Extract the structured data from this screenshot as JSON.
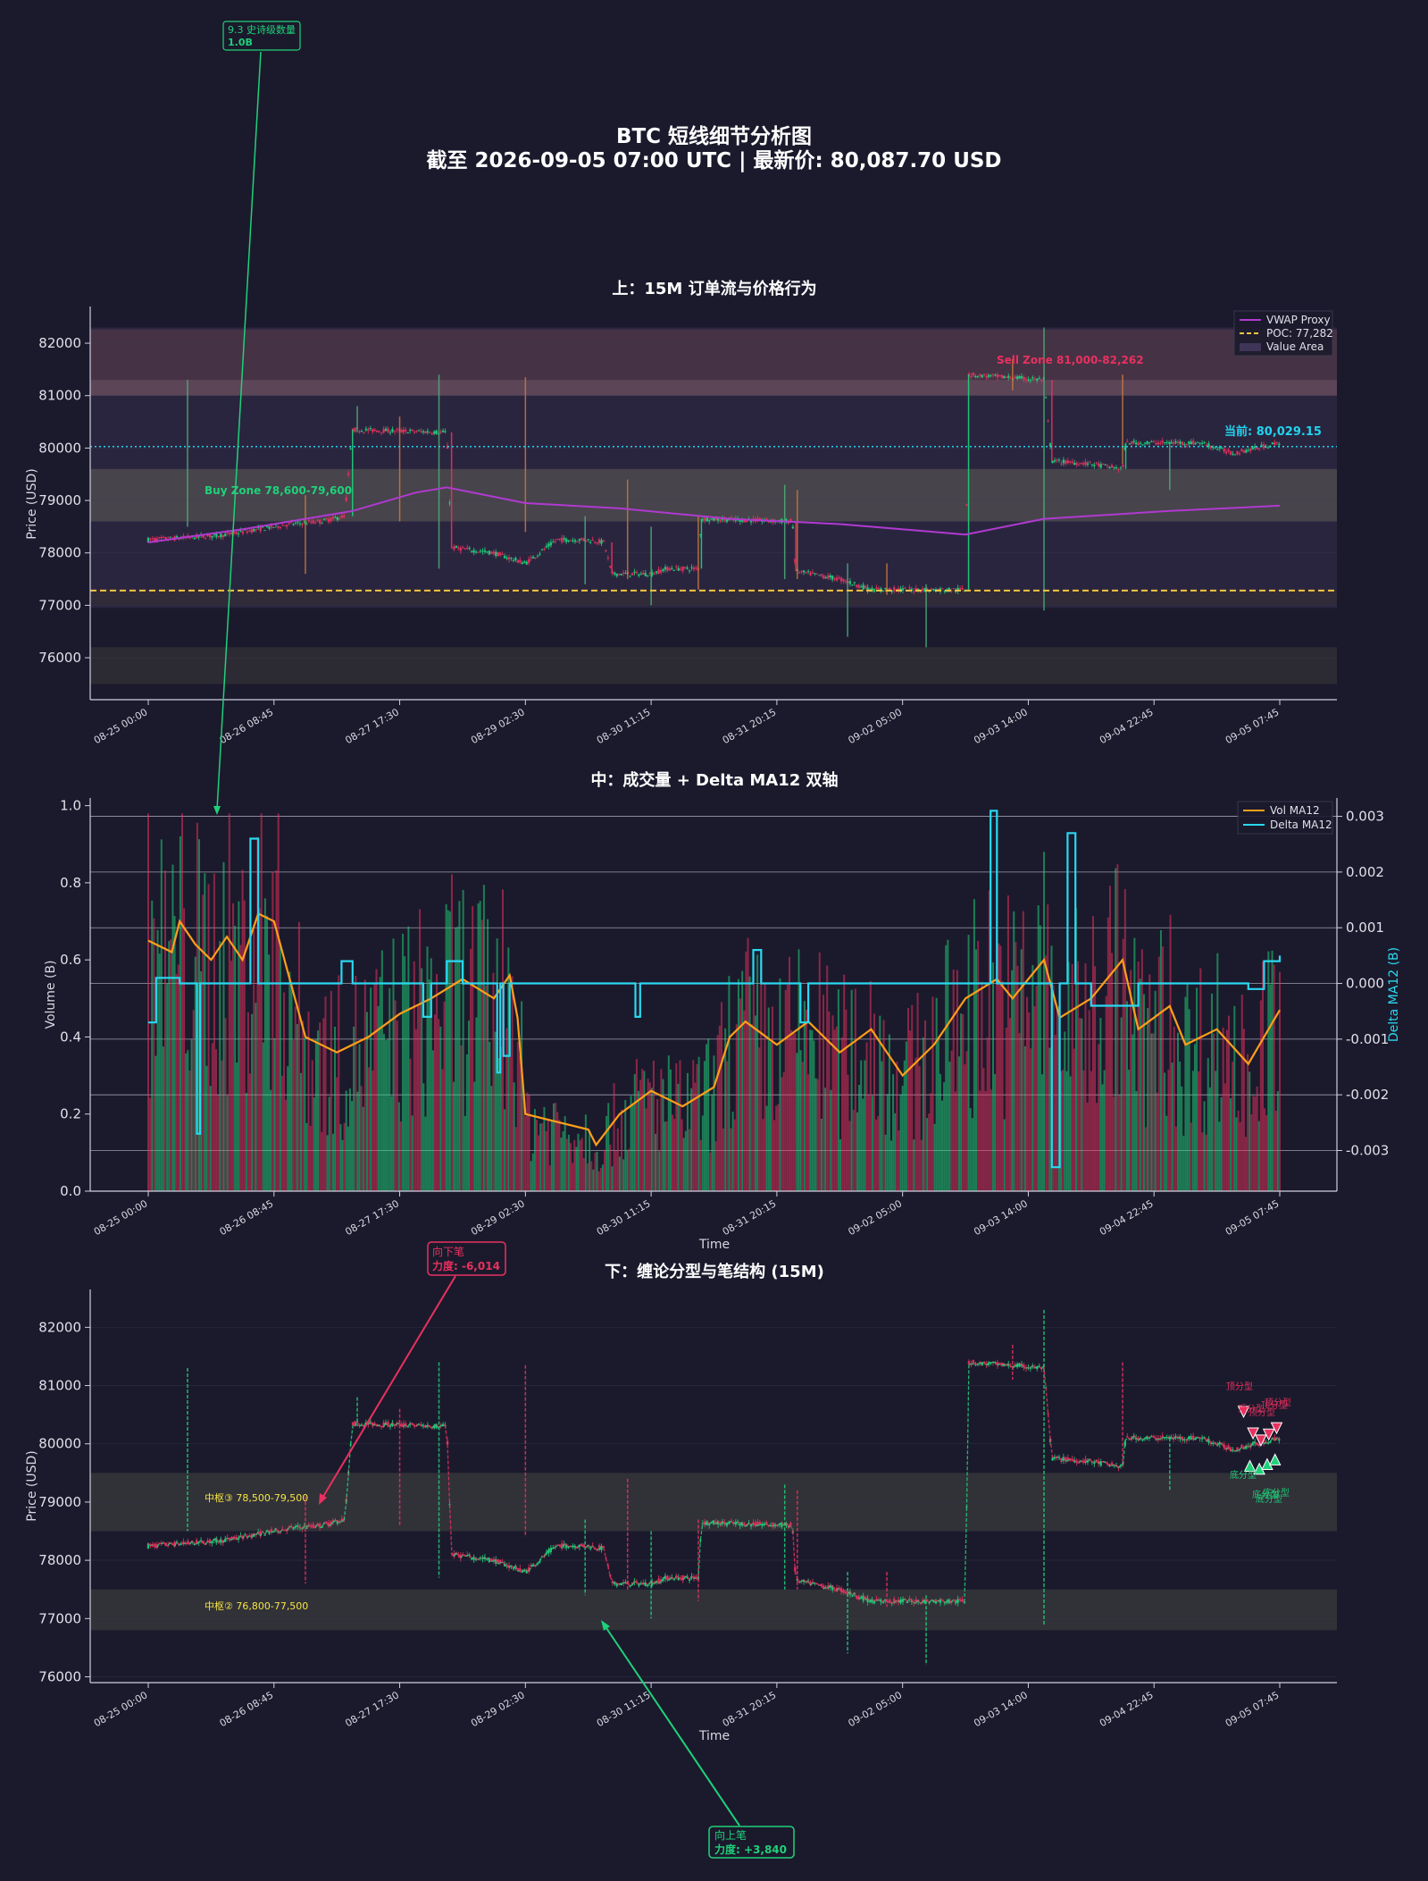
{
  "figure": {
    "title_line1": "BTC 短线细节分析图",
    "title_line2": "截至 2026-09-05 07:00 UTC | 最新价: 80,087.70 USD",
    "colors": {
      "background": "#1b1a2c",
      "up": "#1fd17a",
      "down": "#e8315f",
      "vwap": "#b03ad0",
      "poc": "#f5c542",
      "current": "#22d3ee",
      "vol_ma": "#ff9f1a",
      "delta_ma": "#29d8f0",
      "zhongshu_label": "#f5e642"
    }
  },
  "chart_data": [
    {
      "type": "candlestick",
      "title": "上：15M 订单流与价格行为",
      "ylabel": "Price (USD)",
      "ylim": [
        75200,
        82700
      ],
      "yticks": [
        76000,
        77000,
        78000,
        79000,
        80000,
        81000,
        82000
      ],
      "x_tick_labels": [
        "08-25 00:00",
        "08-26 08:45",
        "08-27 17:30",
        "08-29 02:30",
        "08-30 11:15",
        "08-31 20:15",
        "09-02 05:00",
        "09-03 14:00",
        "09-04 22:45",
        "09-05 07:45"
      ],
      "legend": {
        "placement": "top-right",
        "entries": [
          "VWAP Proxy",
          "POC: 77,282",
          "Value Area"
        ]
      },
      "levels": {
        "poc": 77282,
        "current": 80029.15,
        "current_label": "当前: 80,029.15"
      },
      "zones": [
        {
          "label": "Buy Zone 78,600-79,600",
          "low": 78600,
          "high": 79600
        },
        {
          "label": "Sell Zone 81,000-82,262",
          "low": 81000,
          "high": 82262
        },
        {
          "label": "",
          "low": 81000,
          "high": 81300
        },
        {
          "label": "",
          "low": 75500,
          "high": 76200
        },
        {
          "label": "",
          "low": 77000,
          "high": 77300
        }
      ],
      "value_area": {
        "low": 76950,
        "high": 82300
      },
      "price_path": [
        [
          0,
          78250
        ],
        [
          3,
          78300
        ],
        [
          5,
          78350
        ],
        [
          7,
          78450
        ],
        [
          9,
          78550
        ],
        [
          11,
          78600
        ],
        [
          12.5,
          78700
        ],
        [
          13,
          80350
        ],
        [
          19,
          80300
        ],
        [
          19.3,
          78100
        ],
        [
          22,
          78000
        ],
        [
          24,
          77800
        ],
        [
          26,
          78250
        ],
        [
          28,
          78250
        ],
        [
          29,
          78200
        ],
        [
          29.5,
          77600
        ],
        [
          32,
          77600
        ],
        [
          33,
          77700
        ],
        [
          35,
          77700
        ],
        [
          35.2,
          78650
        ],
        [
          41,
          78600
        ],
        [
          41.2,
          77650
        ],
        [
          44,
          77500
        ],
        [
          46,
          77300
        ],
        [
          48,
          77300
        ],
        [
          52,
          77300
        ],
        [
          52.2,
          81400
        ],
        [
          57,
          81300
        ],
        [
          57.5,
          79750
        ],
        [
          60,
          79700
        ],
        [
          62,
          79600
        ],
        [
          62.2,
          80100
        ],
        [
          67,
          80100
        ],
        [
          69,
          79900
        ],
        [
          72,
          80100
        ]
      ],
      "spikes": [
        [
          2.5,
          81300,
          78500
        ],
        [
          10,
          79100,
          77600
        ],
        [
          13.3,
          80800,
          80300
        ],
        [
          16,
          80600,
          78600
        ],
        [
          18.5,
          81400,
          77700
        ],
        [
          24,
          81350,
          78400
        ],
        [
          27.8,
          78700,
          77400
        ],
        [
          30.5,
          79400,
          77500
        ],
        [
          32,
          78500,
          77000
        ],
        [
          35,
          78700,
          77300
        ],
        [
          40.5,
          79300,
          77500
        ],
        [
          41.3,
          79200,
          77500
        ],
        [
          44.5,
          77800,
          76400
        ],
        [
          47,
          77800,
          77200
        ],
        [
          49.5,
          77400,
          76200
        ],
        [
          55,
          81700,
          81100
        ],
        [
          57,
          82300,
          76900
        ],
        [
          62,
          81400,
          79700
        ],
        [
          65,
          80100,
          79200
        ]
      ],
      "vwap": [
        [
          0,
          78200
        ],
        [
          6,
          78450
        ],
        [
          10,
          78650
        ],
        [
          13,
          78800
        ],
        [
          17,
          79150
        ],
        [
          19,
          79250
        ],
        [
          24,
          78950
        ],
        [
          30,
          78850
        ],
        [
          37,
          78650
        ],
        [
          44,
          78550
        ],
        [
          52,
          78350
        ],
        [
          57,
          78650
        ],
        [
          65,
          78800
        ],
        [
          72,
          78900
        ]
      ]
    },
    {
      "type": "bar+line",
      "title": "中：成交量 + Delta MA12 双轴",
      "xlabel": "Time",
      "ylabel": "Volume (B)",
      "y2label": "Delta MA12 (B)",
      "ylim": [
        0,
        1.02
      ],
      "yticks": [
        0.0,
        0.2,
        0.4,
        0.6,
        0.8,
        1.0
      ],
      "y2lim": [
        -0.00373,
        0.00333
      ],
      "y2ticks": [
        -0.003,
        -0.002,
        -0.001,
        0.0,
        0.001,
        0.002,
        0.003
      ],
      "x_tick_labels": [
        "08-25 00:00",
        "08-26 08:45",
        "08-27 17:30",
        "08-29 02:30",
        "08-30 11:15",
        "08-31 20:15",
        "09-02 05:00",
        "09-03 14:00",
        "09-04 22:45",
        "09-05 07:45"
      ],
      "legend": {
        "placement": "top-right",
        "entries": [
          "Vol MA12",
          "Delta MA12"
        ]
      },
      "vol_ma12": [
        [
          0,
          0.65
        ],
        [
          1.5,
          0.62
        ],
        [
          2,
          0.7
        ],
        [
          3,
          0.64
        ],
        [
          4,
          0.6
        ],
        [
          5,
          0.66
        ],
        [
          6,
          0.6
        ],
        [
          7,
          0.72
        ],
        [
          8,
          0.7
        ],
        [
          9,
          0.55
        ],
        [
          10,
          0.4
        ],
        [
          12,
          0.36
        ],
        [
          14,
          0.4
        ],
        [
          16,
          0.46
        ],
        [
          18,
          0.5
        ],
        [
          20,
          0.55
        ],
        [
          22,
          0.5
        ],
        [
          23,
          0.56
        ],
        [
          23.5,
          0.45
        ],
        [
          24,
          0.2
        ],
        [
          26,
          0.18
        ],
        [
          28,
          0.16
        ],
        [
          28.5,
          0.12
        ],
        [
          30,
          0.2
        ],
        [
          32,
          0.26
        ],
        [
          34,
          0.22
        ],
        [
          36,
          0.27
        ],
        [
          37,
          0.4
        ],
        [
          38,
          0.44
        ],
        [
          40,
          0.38
        ],
        [
          42,
          0.44
        ],
        [
          44,
          0.36
        ],
        [
          46,
          0.42
        ],
        [
          48,
          0.3
        ],
        [
          50,
          0.38
        ],
        [
          52,
          0.5
        ],
        [
          54,
          0.55
        ],
        [
          55,
          0.5
        ],
        [
          57,
          0.6
        ],
        [
          58,
          0.45
        ],
        [
          60,
          0.5
        ],
        [
          62,
          0.6
        ],
        [
          63,
          0.42
        ],
        [
          65,
          0.48
        ],
        [
          66,
          0.38
        ],
        [
          68,
          0.42
        ],
        [
          70,
          0.33
        ],
        [
          71,
          0.4
        ],
        [
          72,
          0.47
        ]
      ],
      "delta_ma12": [
        [
          0,
          -0.0007
        ],
        [
          0.5,
          0.0001
        ],
        [
          1,
          0.0001
        ],
        [
          2,
          0.0
        ],
        [
          3,
          0.0
        ],
        [
          3.1,
          -0.0027
        ],
        [
          3.3,
          0.0
        ],
        [
          5,
          0.0
        ],
        [
          6,
          0.0
        ],
        [
          6.5,
          0.0026
        ],
        [
          7,
          0.0
        ],
        [
          8,
          0.0
        ],
        [
          9,
          0.0
        ],
        [
          10,
          0.0
        ],
        [
          10.5,
          0.0
        ],
        [
          12,
          0.0
        ],
        [
          12.3,
          0.0004
        ],
        [
          13,
          0.0
        ],
        [
          17,
          0.0
        ],
        [
          17.5,
          -0.0006
        ],
        [
          18,
          0.0
        ],
        [
          19,
          0.0004
        ],
        [
          20,
          0.0
        ],
        [
          22,
          0.0
        ],
        [
          22.2,
          -0.0016
        ],
        [
          22.4,
          0.0
        ],
        [
          22.6,
          -0.0013
        ],
        [
          23,
          0.0
        ],
        [
          24,
          0.0
        ],
        [
          30,
          0.0
        ],
        [
          31,
          -0.0006
        ],
        [
          31.3,
          0.0
        ],
        [
          38,
          0.0
        ],
        [
          38.5,
          0.0006
        ],
        [
          39,
          0.0
        ],
        [
          41,
          0.0
        ],
        [
          41.5,
          -0.0007
        ],
        [
          42,
          0.0
        ],
        [
          45,
          0.0
        ],
        [
          47,
          0.0
        ],
        [
          50,
          0.0
        ],
        [
          52,
          0.0
        ],
        [
          53.5,
          0.0
        ],
        [
          53.6,
          0.0031
        ],
        [
          54,
          0.0
        ],
        [
          55,
          0.0
        ],
        [
          57,
          0.0
        ],
        [
          57.5,
          -0.0033
        ],
        [
          58,
          0.0
        ],
        [
          58.5,
          0.0027
        ],
        [
          59,
          0.0
        ],
        [
          60,
          -0.0004
        ],
        [
          63,
          0.0
        ],
        [
          64,
          0.0
        ],
        [
          66,
          0.0
        ],
        [
          68,
          0.0
        ],
        [
          70,
          -0.0001
        ],
        [
          71,
          0.0004
        ],
        [
          72,
          0.0005
        ]
      ],
      "volume_bars": "per 15M candle, 0.1–0.95 B; shown as red/green bars"
    },
    {
      "type": "line",
      "title": "下：缠论分型与笔结构 (15M)",
      "xlabel": "Time",
      "ylabel": "Price (USD)",
      "ylim": [
        75900,
        82650
      ],
      "yticks": [
        76000,
        77000,
        78000,
        79000,
        80000,
        81000,
        82000
      ],
      "x_tick_labels": [
        "08-25 00:00",
        "08-26 08:45",
        "08-27 17:30",
        "08-29 02:30",
        "08-30 11:15",
        "08-31 20:15",
        "09-02 05:00",
        "09-03 14:00",
        "09-04 22:45",
        "09-05 07:45"
      ],
      "zhongshu": [
        {
          "label": "中枢③ 78,500-79,500",
          "low": 78500,
          "high": 79500
        },
        {
          "label": "中枢② 76,800-77,500",
          "low": 76800,
          "high": 77500
        }
      ],
      "fractal_labels": {
        "top": "顶分型",
        "bottom": "底分型"
      },
      "top_fractals": [
        [
          69.7,
          80550
        ],
        [
          70.3,
          80180
        ],
        [
          70.8,
          80060
        ],
        [
          71.3,
          80160
        ],
        [
          71.8,
          80270
        ]
      ],
      "bottom_fractals": [
        [
          70.1,
          79620
        ],
        [
          70.7,
          79570
        ],
        [
          71.2,
          79650
        ],
        [
          71.7,
          79730
        ]
      ]
    }
  ],
  "annotations": {
    "history_volume": {
      "line1": "9.3 史诗级数量",
      "line2": "1.0B"
    },
    "down_stroke": {
      "line1": "向下笔",
      "line2": "力度: -6,014"
    },
    "up_stroke": {
      "line1": "向上笔",
      "line2": "力度: +3,840"
    }
  }
}
